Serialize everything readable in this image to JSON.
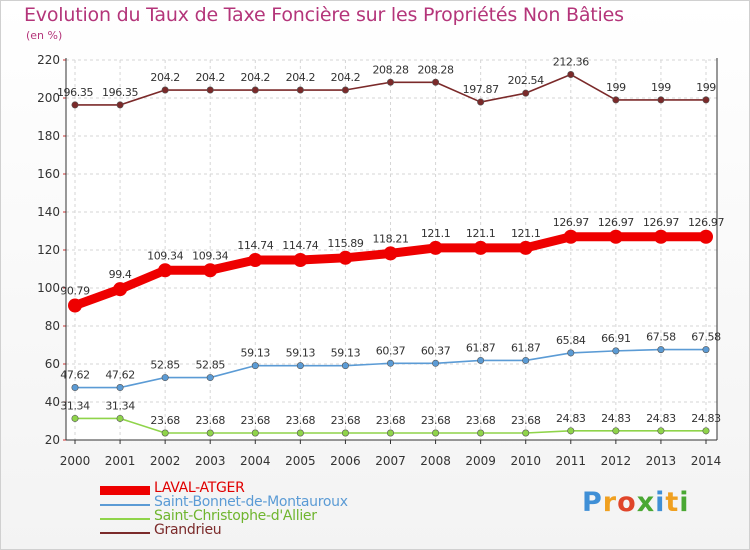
{
  "title": "Evolution du Taux de Taxe Foncière sur les Propriétés Non Bâties",
  "unit": "(en %)",
  "logo": {
    "text": "Proxiti",
    "colors": [
      "#3f8fd6",
      "#f0a020",
      "#e0452a",
      "#4aa833",
      "#3f8fd6",
      "#f0a020",
      "#4aa833"
    ]
  },
  "chart_data": {
    "type": "line",
    "title": "Evolution du Taux de Taxe Foncière sur les Propriétés Non Bâties",
    "ylabel": "(en %)",
    "xlabel": "",
    "ylim": [
      20,
      220
    ],
    "yticks": [
      "20",
      "40",
      "60",
      "80",
      "100",
      "120",
      "140",
      "160",
      "180",
      "200",
      "220"
    ],
    "categories": [
      "2000",
      "2001",
      "2002",
      "2003",
      "2004",
      "2005",
      "2006",
      "2007",
      "2008",
      "2009",
      "2010",
      "2011",
      "2012",
      "2013",
      "2014"
    ],
    "series": [
      {
        "name": "LAVAL-ATGER",
        "color": "#ee0000",
        "bold": true,
        "values": [
          90.79,
          99.4,
          109.34,
          109.34,
          114.74,
          114.74,
          115.89,
          118.21,
          121.1,
          121.1,
          121.1,
          126.97,
          126.97,
          126.97,
          126.97
        ],
        "labels": [
          "90.79",
          "99.4",
          "109.34",
          "109.34",
          "114.74",
          "114.74",
          "115.89",
          "118.21",
          "121.1",
          "121.1",
          "121.1",
          "126.97",
          "126.97",
          "126.97",
          "126.97"
        ]
      },
      {
        "name": "Saint-Bonnet-de-Montauroux",
        "color": "#5b9bd5",
        "bold": false,
        "values": [
          47.62,
          47.62,
          52.85,
          52.85,
          59.13,
          59.13,
          59.13,
          60.37,
          60.37,
          61.87,
          61.87,
          65.84,
          66.91,
          67.58,
          67.58
        ],
        "labels": [
          "47.62",
          "47.62",
          "52.85",
          "52.85",
          "59.13",
          "59.13",
          "59.13",
          "60.37",
          "60.37",
          "61.87",
          "61.87",
          "65.84",
          "66.91",
          "67.58",
          "67.58"
        ]
      },
      {
        "name": "Saint-Christophe-d'Allier",
        "color": "#8fd44a",
        "bold": false,
        "values": [
          31.34,
          31.34,
          23.68,
          23.68,
          23.68,
          23.68,
          23.68,
          23.68,
          23.68,
          23.68,
          23.68,
          24.83,
          24.83,
          24.83,
          24.83
        ],
        "labels": [
          "31.34",
          "31.34",
          "23.68",
          "23.68",
          "23.68",
          "23.68",
          "23.68",
          "23.68",
          "23.68",
          "23.68",
          "23.68",
          "24.83",
          "24.83",
          "24.83",
          "24.83"
        ]
      },
      {
        "name": "Grandrieu",
        "color": "#7b2a2a",
        "bold": false,
        "values": [
          196.35,
          196.35,
          204.2,
          204.2,
          204.2,
          204.2,
          204.2,
          208.28,
          208.28,
          197.87,
          202.54,
          212.36,
          199,
          199,
          199
        ],
        "labels": [
          "196.35",
          "196.35",
          "204.2",
          "204.2",
          "204.2",
          "204.2",
          "204.2",
          "208.28",
          "208.28",
          "197.87",
          "202.54",
          "212.36",
          "199",
          "199",
          "199"
        ]
      }
    ]
  }
}
